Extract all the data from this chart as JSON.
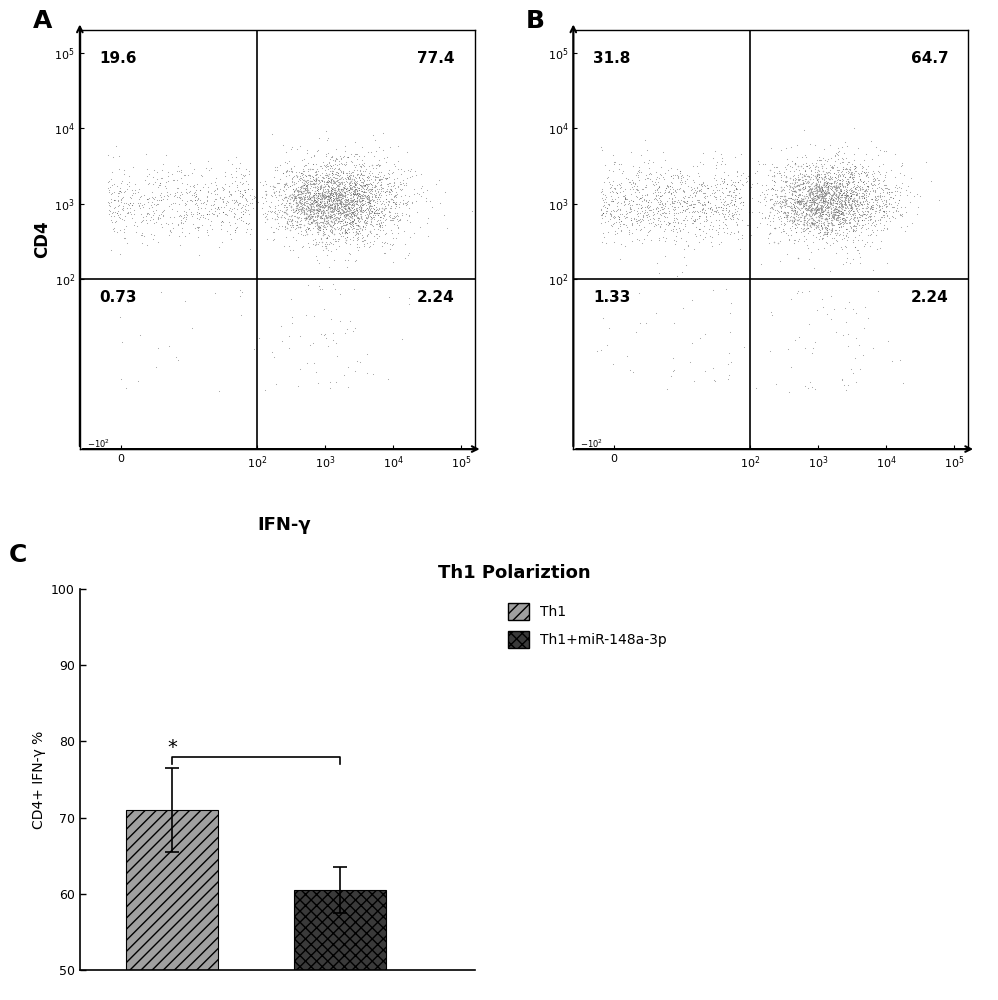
{
  "panel_A_quadrant_labels": [
    "19.6",
    "77.4",
    "0.73",
    "2.24"
  ],
  "panel_B_quadrant_labels": [
    "31.8",
    "64.7",
    "1.33",
    "2.24"
  ],
  "panel_C_title": "Th1 Polariztion",
  "panel_C_ylabel": "CD4+ IFN-γ %",
  "panel_C_ylim": [
    50,
    100
  ],
  "panel_C_yticks": [
    50,
    60,
    70,
    80,
    90,
    100
  ],
  "bar_values": [
    71.0,
    60.5
  ],
  "bar_errors": [
    5.5,
    3.0
  ],
  "bar_colors": [
    "#a0a0a0",
    "#3a3a3a"
  ],
  "bar_labels": [
    "Th1",
    "Th1+miR-148a-3p"
  ],
  "panel_labels": [
    "A",
    "B",
    "C"
  ],
  "significance_text": "*",
  "background_color": "#ffffff",
  "dot_color": "#404040",
  "dot_color_light": "#909090"
}
